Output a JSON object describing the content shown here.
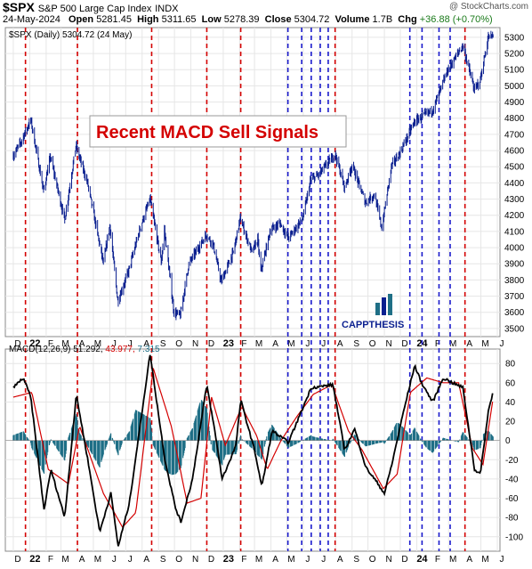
{
  "header": {
    "symbol": "$SPX",
    "name": "S&P 500 Large Cap Index",
    "exchange": "INDX",
    "watermark": "@ StockCharts.com",
    "date": "24-May-2024",
    "open_label": "Open",
    "open": "5281.45",
    "high_label": "High",
    "high": "5311.65",
    "low_label": "Low",
    "low": "5278.39",
    "close_label": "Close",
    "close": "5304.72",
    "volume_label": "Volume",
    "volume": "1.7B",
    "chg_label": "Chg",
    "chg": "+36.88 (+0.70%)"
  },
  "colors": {
    "price": "#0a1f8f",
    "sell_line": "#d40000",
    "blue_line": "#1a1acc",
    "macd": "#000000",
    "signal": "#d40000",
    "histogram": "#1f6f86",
    "grid": "#e6e6e6",
    "callout_text": "#d40000"
  },
  "callout": "Recent MACD Sell Signals",
  "brand": "CAPPTHESIS",
  "chart_data": [
    {
      "type": "line",
      "legend": "$SPX (Daily) 5304.72 (24 May)",
      "ylim": [
        3450,
        5360
      ],
      "ytick_labels": [
        3500,
        3600,
        3700,
        3800,
        3900,
        4000,
        4100,
        4200,
        4300,
        4400,
        4500,
        4600,
        4700,
        4800,
        4900,
        5000,
        5100,
        5200,
        5300
      ],
      "x_tick_labels": [
        "D",
        "22",
        "F",
        "M",
        "A",
        "M",
        "J",
        "J",
        "A",
        "S",
        "O",
        "N",
        "D",
        "23",
        "F",
        "M",
        "A",
        "M",
        "J",
        "J",
        "A",
        "S",
        "O",
        "N",
        "D",
        "24",
        "F",
        "M",
        "A",
        "M",
        "J"
      ],
      "series": [
        {
          "name": "$SPX",
          "x": [
            "2021-12-01",
            "2021-12-15",
            "2022-01-03",
            "2022-01-27",
            "2022-02-09",
            "2022-03-08",
            "2022-03-29",
            "2022-04-20",
            "2022-05-20",
            "2022-06-01",
            "2022-06-16",
            "2022-07-06",
            "2022-07-29",
            "2022-08-16",
            "2022-09-06",
            "2022-09-12",
            "2022-09-30",
            "2022-10-12",
            "2022-10-28",
            "2022-11-30",
            "2022-12-13",
            "2022-12-28",
            "2023-01-20",
            "2023-02-02",
            "2023-02-24",
            "2023-03-07",
            "2023-03-13",
            "2023-03-31",
            "2023-04-18",
            "2023-05-04",
            "2023-05-31",
            "2023-06-15",
            "2023-06-30",
            "2023-07-31",
            "2023-08-18",
            "2023-09-01",
            "2023-09-26",
            "2023-10-13",
            "2023-10-27",
            "2023-11-14",
            "2023-12-01",
            "2023-12-28",
            "2024-01-31",
            "2024-02-29",
            "2024-03-28",
            "2024-04-19",
            "2024-04-30",
            "2024-05-15",
            "2024-05-24"
          ],
          "values": [
            4570,
            4650,
            4790,
            4350,
            4560,
            4170,
            4630,
            4400,
            3900,
            4140,
            3670,
            3850,
            4130,
            4300,
            3910,
            4110,
            3600,
            3580,
            3900,
            4080,
            4020,
            3790,
            3970,
            4180,
            3970,
            4050,
            3850,
            4110,
            4150,
            4060,
            4180,
            4420,
            4450,
            4580,
            4370,
            4510,
            4280,
            4330,
            4120,
            4500,
            4590,
            4780,
            4850,
            5100,
            5250,
            4970,
            5040,
            5300,
            5305
          ]
        }
      ]
    },
    {
      "type": "line",
      "legend": [
        "MACD(12,26,9)",
        "51.292",
        "43.977",
        "7.315"
      ],
      "ylim": [
        -115,
        95
      ],
      "ytick_labels": [
        80,
        60,
        40,
        20,
        0,
        -20,
        -40,
        -60,
        -80,
        -100
      ],
      "x_tick_labels": [
        "D",
        "22",
        "F",
        "M",
        "A",
        "M",
        "J",
        "J",
        "A",
        "S",
        "O",
        "N",
        "D",
        "23",
        "F",
        "M",
        "A",
        "M",
        "J",
        "J",
        "A",
        "S",
        "O",
        "N",
        "D",
        "24",
        "F",
        "M",
        "A",
        "M",
        "J"
      ],
      "series": [
        {
          "name": "MACD",
          "x": [
            "2021-12-01",
            "2021-12-20",
            "2022-01-03",
            "2022-01-28",
            "2022-02-10",
            "2022-03-08",
            "2022-03-30",
            "2022-04-22",
            "2022-05-13",
            "2022-06-03",
            "2022-06-17",
            "2022-07-08",
            "2022-08-16",
            "2022-09-13",
            "2022-10-03",
            "2022-10-13",
            "2022-11-04",
            "2022-12-01",
            "2022-12-16",
            "2022-12-30",
            "2023-01-25",
            "2023-02-03",
            "2023-03-01",
            "2023-03-15",
            "2023-04-03",
            "2023-05-04",
            "2023-06-01",
            "2023-06-16",
            "2023-07-03",
            "2023-07-27",
            "2023-08-18",
            "2023-09-06",
            "2023-09-27",
            "2023-10-20",
            "2023-11-01",
            "2023-11-15",
            "2023-12-05",
            "2023-12-28",
            "2024-01-10",
            "2024-01-31",
            "2024-02-20",
            "2024-03-08",
            "2024-03-28",
            "2024-04-19",
            "2024-04-30",
            "2024-05-15",
            "2024-05-24"
          ],
          "values": [
            55,
            65,
            45,
            -72,
            -30,
            -80,
            48,
            -25,
            -95,
            -55,
            -110,
            -65,
            90,
            -20,
            -70,
            -85,
            -40,
            58,
            10,
            -40,
            -5,
            42,
            -10,
            -48,
            10,
            -2,
            35,
            55,
            56,
            58,
            -10,
            12,
            -28,
            -45,
            -55,
            -25,
            25,
            78,
            60,
            40,
            65,
            60,
            55,
            -30,
            -35,
            30,
            51.3
          ]
        },
        {
          "name": "Signal",
          "x": [
            "2021-12-01",
            "2022-01-05",
            "2022-02-05",
            "2022-03-15",
            "2022-04-05",
            "2022-05-20",
            "2022-06-25",
            "2022-07-20",
            "2022-08-22",
            "2022-09-25",
            "2022-10-25",
            "2022-11-20",
            "2022-12-10",
            "2023-01-05",
            "2023-02-05",
            "2023-03-05",
            "2023-03-25",
            "2023-04-20",
            "2023-05-20",
            "2023-06-20",
            "2023-07-25",
            "2023-08-25",
            "2023-09-20",
            "2023-10-30",
            "2023-11-25",
            "2023-12-20",
            "2024-01-20",
            "2024-02-20",
            "2024-03-20",
            "2024-04-15",
            "2024-05-05",
            "2024-05-24"
          ],
          "values": [
            45,
            50,
            -30,
            -45,
            15,
            -55,
            -90,
            -75,
            75,
            15,
            -65,
            -60,
            45,
            -5,
            35,
            5,
            -30,
            0,
            25,
            48,
            58,
            10,
            -10,
            -50,
            -35,
            50,
            65,
            60,
            60,
            -8,
            -25,
            44.0
          ]
        }
      ],
      "histogram_peak": [
        [
          "2022-04-18",
          -30
        ],
        [
          "2022-08-05",
          25
        ],
        [
          "2022-11-10",
          25
        ],
        [
          "2023-06-05",
          10
        ],
        [
          "2023-10-20",
          -10
        ],
        [
          "2023-12-10",
          20
        ],
        [
          "2024-04-25",
          -20
        ]
      ],
      "sell_signal_dates": [
        "2021-12-24",
        "2022-04-01",
        "2022-08-19",
        "2022-12-01",
        "2023-02-03",
        "2023-07-31",
        "2024-04-01"
      ],
      "blue_signal_dates": [
        "2023-05-03",
        "2023-05-29",
        "2023-06-16",
        "2023-07-03",
        "2023-07-18",
        "2023-12-19",
        "2024-01-11",
        "2024-02-12",
        "2024-03-04"
      ]
    }
  ]
}
